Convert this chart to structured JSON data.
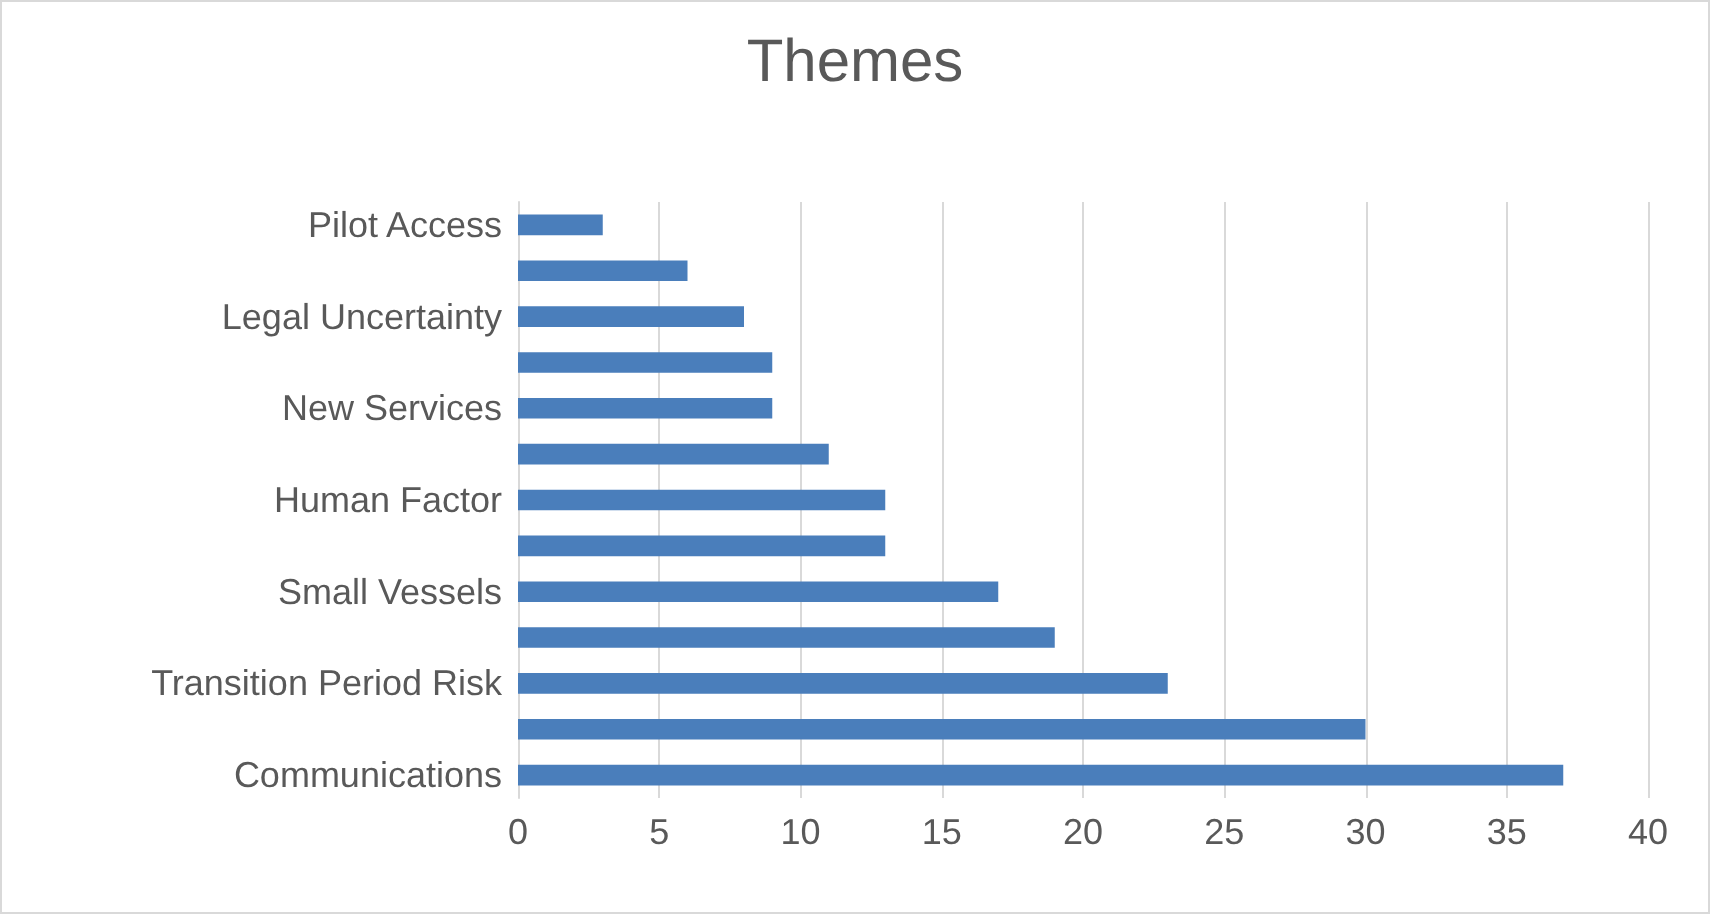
{
  "chart_data": {
    "type": "bar",
    "title": "Themes",
    "orientation": "horizontal",
    "categories": [
      "Pilot Access",
      null,
      "Legal Uncertainty",
      null,
      "New Services",
      null,
      "Human Factor",
      null,
      "Small Vessels",
      null,
      "Transition Period Risk",
      null,
      "Communications"
    ],
    "values": [
      3,
      6,
      8,
      9,
      9,
      11,
      13,
      13,
      17,
      19,
      23,
      30,
      37
    ],
    "color": "#4a7ebb",
    "xlim": [
      0,
      40
    ],
    "xticks": [
      0,
      5,
      10,
      15,
      20,
      25,
      30,
      35,
      40
    ],
    "grid": "x"
  }
}
